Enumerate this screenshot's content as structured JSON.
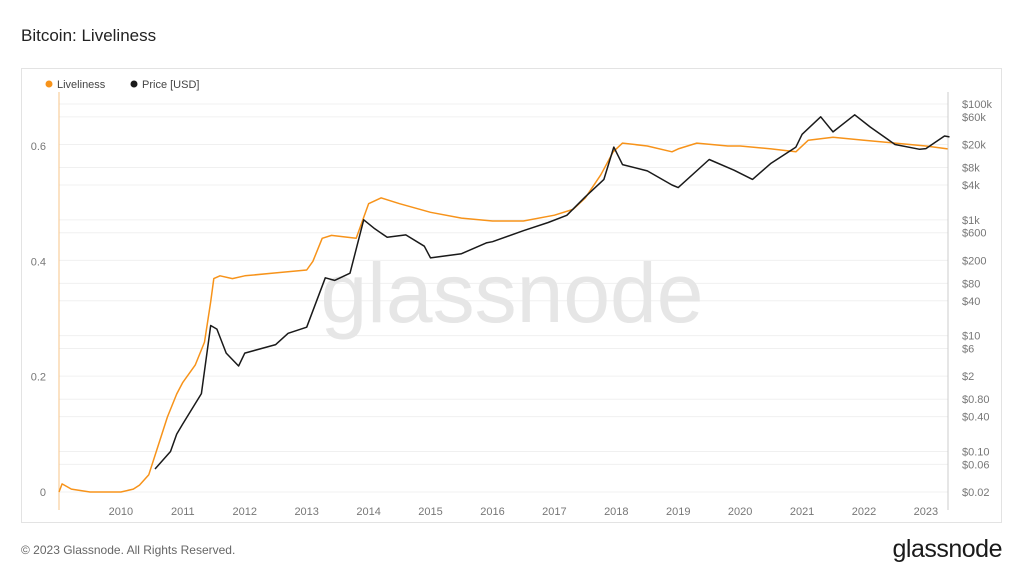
{
  "title": "Bitcoin: Liveliness",
  "footer": "© 2023 Glassnode. All Rights Reserved.",
  "logo": "glassnode",
  "watermark": "glassnode",
  "colors": {
    "liveliness": "#f7931a",
    "price": "#1a1a1a"
  },
  "chart_data": {
    "type": "line",
    "title": "Bitcoin: Liveliness",
    "legend_position": "top-left",
    "x_ticks": [
      "2010",
      "2011",
      "2012",
      "2013",
      "2014",
      "2015",
      "2016",
      "2017",
      "2018",
      "2019",
      "2020",
      "2021",
      "2022",
      "2023"
    ],
    "x_range": [
      2009.0,
      2023.38
    ],
    "y_left": {
      "ticks": [
        "0",
        "0.2",
        "0.4",
        "0.6"
      ],
      "range": [
        0,
        0.68
      ]
    },
    "y_right": {
      "scale": "log",
      "ticks": [
        "$100k",
        "$60k",
        "$20k",
        "$8k",
        "$4k",
        "$1k",
        "$600",
        "$200",
        "$80",
        "$40",
        "$10",
        "$6",
        "$2",
        "$0.80",
        "$0.40",
        "$0.10",
        "$0.06",
        "$0.02"
      ],
      "tick_values": [
        100000,
        60000,
        20000,
        8000,
        4000,
        1000,
        600,
        200,
        80,
        40,
        10,
        6,
        2,
        0.8,
        0.4,
        0.1,
        0.06,
        0.02
      ],
      "range": [
        0.02,
        100000
      ]
    },
    "series": [
      {
        "name": "Liveliness",
        "axis": "left",
        "x": [
          2009.0,
          2009.05,
          2009.2,
          2009.5,
          2010.0,
          2010.2,
          2010.3,
          2010.45,
          2010.6,
          2010.75,
          2010.9,
          2011.0,
          2011.2,
          2011.35,
          2011.45,
          2011.5,
          2011.6,
          2011.8,
          2012.0,
          2012.5,
          2013.0,
          2013.1,
          2013.25,
          2013.4,
          2013.8,
          2013.9,
          2014.0,
          2014.2,
          2014.5,
          2015.0,
          2015.5,
          2016.0,
          2016.5,
          2017.0,
          2017.3,
          2017.5,
          2017.75,
          2017.95,
          2018.1,
          2018.5,
          2018.9,
          2019.0,
          2019.3,
          2019.8,
          2020.0,
          2020.5,
          2020.9,
          2021.1,
          2021.5,
          2022.0,
          2022.5,
          2023.0,
          2023.35
        ],
        "values": [
          0,
          0.014,
          0.005,
          0,
          0,
          0.005,
          0.012,
          0.03,
          0.08,
          0.13,
          0.17,
          0.19,
          0.22,
          0.26,
          0.33,
          0.37,
          0.375,
          0.37,
          0.375,
          0.38,
          0.385,
          0.4,
          0.44,
          0.445,
          0.44,
          0.47,
          0.5,
          0.51,
          0.5,
          0.485,
          0.475,
          0.47,
          0.47,
          0.48,
          0.49,
          0.51,
          0.55,
          0.59,
          0.605,
          0.6,
          0.59,
          0.595,
          0.605,
          0.6,
          0.6,
          0.595,
          0.59,
          0.61,
          0.615,
          0.61,
          0.605,
          0.6,
          0.595
        ]
      },
      {
        "name": "Price [USD]",
        "axis": "right",
        "x": [
          2010.55,
          2010.8,
          2010.9,
          2011.0,
          2011.3,
          2011.45,
          2011.55,
          2011.7,
          2011.9,
          2012.0,
          2012.5,
          2012.7,
          2013.0,
          2013.3,
          2013.45,
          2013.7,
          2013.92,
          2014.1,
          2014.3,
          2014.6,
          2014.9,
          2015.0,
          2015.5,
          2015.9,
          2016.0,
          2016.5,
          2016.9,
          2017.2,
          2017.5,
          2017.8,
          2017.96,
          2018.1,
          2018.5,
          2018.9,
          2019.0,
          2019.5,
          2019.9,
          2020.2,
          2020.5,
          2020.9,
          2021.0,
          2021.3,
          2021.5,
          2021.85,
          2022.1,
          2022.5,
          2022.9,
          2023.0,
          2023.3,
          2023.38
        ],
        "values": [
          0.05,
          0.1,
          0.2,
          0.3,
          1,
          15,
          13,
          5,
          3,
          5,
          7,
          11,
          14,
          100,
          90,
          120,
          1000,
          700,
          500,
          550,
          350,
          220,
          260,
          400,
          420,
          650,
          900,
          1200,
          2500,
          5000,
          18000,
          9000,
          7000,
          4000,
          3600,
          11000,
          7200,
          5000,
          9500,
          18000,
          30000,
          60000,
          33000,
          65000,
          40000,
          20000,
          16500,
          17000,
          28000,
          27000
        ]
      }
    ]
  }
}
